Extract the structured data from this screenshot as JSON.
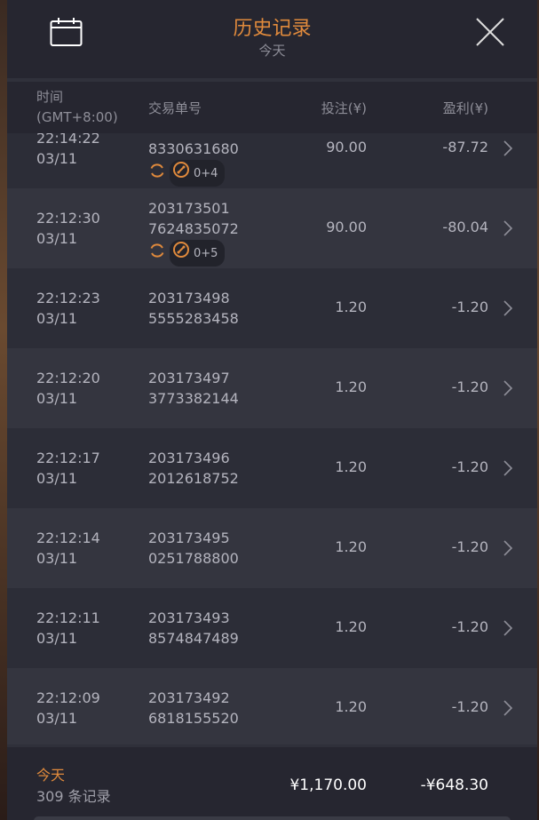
{
  "header": {
    "title": "历史记录",
    "subtitle": "今天"
  },
  "columns": {
    "time": "时间",
    "timezone": "(GMT+8:00)",
    "order": "交易单号",
    "bet": "投注(¥)",
    "profit": "盈利(¥)"
  },
  "rows": [
    {
      "time": "22:14:22",
      "date": "03/11",
      "id1": "",
      "id2": "8330631680",
      "badge": "0+4",
      "bet": "90.00",
      "profit": "-87.72"
    },
    {
      "time": "22:12:30",
      "date": "03/11",
      "id1": "203173501",
      "id2": "7624835072",
      "badge": "0+5",
      "bet": "90.00",
      "profit": "-80.04"
    },
    {
      "time": "22:12:23",
      "date": "03/11",
      "id1": "203173498",
      "id2": "5555283458",
      "bet": "1.20",
      "profit": "-1.20"
    },
    {
      "time": "22:12:20",
      "date": "03/11",
      "id1": "203173497",
      "id2": "3773382144",
      "bet": "1.20",
      "profit": "-1.20"
    },
    {
      "time": "22:12:17",
      "date": "03/11",
      "id1": "203173496",
      "id2": "2012618752",
      "bet": "1.20",
      "profit": "-1.20"
    },
    {
      "time": "22:12:14",
      "date": "03/11",
      "id1": "203173495",
      "id2": "0251788800",
      "bet": "1.20",
      "profit": "-1.20"
    },
    {
      "time": "22:12:11",
      "date": "03/11",
      "id1": "203173493",
      "id2": "8574847489",
      "bet": "1.20",
      "profit": "-1.20"
    },
    {
      "time": "22:12:09",
      "date": "03/11",
      "id1": "203173492",
      "id2": "6818155520",
      "bet": "1.20",
      "profit": "-1.20"
    }
  ],
  "footer": {
    "period": "今天",
    "count": "309 条记录",
    "total_bet": "¥1,170.00",
    "total_profit": "-¥648.30"
  },
  "colors": {
    "accent": "#e08a3c",
    "background": "#262630"
  }
}
